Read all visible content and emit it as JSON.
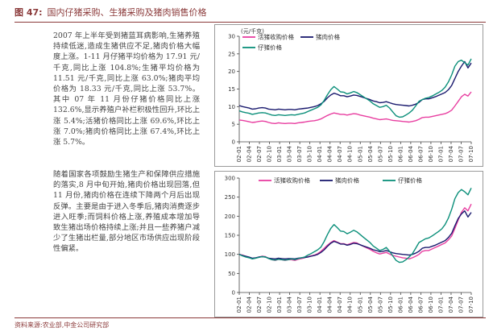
{
  "header": {
    "figure_label": "图 47:",
    "title": "国内仔猪采购、生猪采购及猪肉销售价格"
  },
  "text": {
    "para1": "2007 年上半年受到猪蓝耳病影响,生猪养殖持续低迷,造成生猪供应不足,猪肉价格大幅度上涨。1-11 月仔猪平均价格为 17.91 元/千克,同比上涨 104.8%;生猪平均价格为 11.51 元/千克,同比上涨 63.0%;猪肉平均价格为 18.33 元/千克,同比上涨 53.7%。其中 07 年 11 月份仔猪价格同比上涨 132.6%,显示养殖户补栏积极性回升,环比上涨 5.4%;活猪价格同比上涨 69.6%,环比上涨 7.0%;猪肉价格同比上涨 67.4%,环比上涨 5.7%。",
    "para2": "随着国家各项鼓励生猪生产和保障供应措施的落实,8 月中旬开始,猪肉价格出现回落,但 11 月份,猪肉价格在连续下降两个月后出现反弹。主要是由于进入冬季后,猪肉消费逐步进入旺季;而饲料价格上涨,养殖成本增加导致生猪出场价格持续上涨;并且一些养猪户减少了生猪出栏量,部分地区市场供应出现阶段性偏紧。"
  },
  "source": "资料来源:农业部,中金公司研究部",
  "colors": {
    "live_pig": "#e83ea0",
    "pork": "#1a1a6e",
    "piglet": "#0b8f7a",
    "accent": "#8b3a3a"
  },
  "chart_data": [
    {
      "type": "line",
      "title": "",
      "ylabel": "(元/千克)",
      "ylim": [
        0,
        30
      ],
      "yticks": [
        "0",
        "5",
        "10",
        "15",
        "20",
        "25",
        "30"
      ],
      "grid": false,
      "legend": "top-left",
      "legend_labels": [
        "活猪收购价格",
        "猪肉价格",
        "仔猪价格"
      ],
      "x_ticks": [
        "02-01",
        "02-04",
        "02-07",
        "02-10",
        "03-01",
        "03-04",
        "03-07",
        "03-10",
        "04-01",
        "04-04",
        "04-07",
        "04-10",
        "05-01",
        "05-04",
        "05-07",
        "05-10",
        "06-01",
        "06-04",
        "06-07",
        "06-10",
        "07-01",
        "07-04",
        "07-07",
        "07-10"
      ],
      "series": [
        {
          "name": "活猪收购价格",
          "color_key": "live_pig",
          "values": [
            6.2,
            6.1,
            5.9,
            5.7,
            5.5,
            5.6,
            5.8,
            5.9,
            5.8,
            5.5,
            5.3,
            5.2,
            5.4,
            5.3,
            5.2,
            5.3,
            5.3,
            5.2,
            5.4,
            5.5,
            5.6,
            5.8,
            5.9,
            6.0,
            6.2,
            6.5,
            7.0,
            7.5,
            7.9,
            8.2,
            8.0,
            7.8,
            7.8,
            7.6,
            7.8,
            8.0,
            7.9,
            7.6,
            7.4,
            7.2,
            7.0,
            6.7,
            6.5,
            6.3,
            6.4,
            6.5,
            6.3,
            6.1,
            6.0,
            5.9,
            5.8,
            5.7,
            5.6,
            5.8,
            6.0,
            6.4,
            6.9,
            7.0,
            7.0,
            7.2,
            7.4,
            7.6,
            7.8,
            8.0,
            8.4,
            9.0,
            10.2,
            11.5,
            12.8,
            13.5,
            13.0,
            14.2
          ]
        },
        {
          "name": "猪肉价格",
          "color_key": "pork",
          "values": [
            10.3,
            10.0,
            9.8,
            9.6,
            9.3,
            9.4,
            9.6,
            9.7,
            9.6,
            9.3,
            9.2,
            9.1,
            9.3,
            9.2,
            9.1,
            9.2,
            9.2,
            9.1,
            9.3,
            9.4,
            9.5,
            9.6,
            9.8,
            10.0,
            10.3,
            10.8,
            11.5,
            12.5,
            13.3,
            13.8,
            13.5,
            13.1,
            13.1,
            12.8,
            13.0,
            13.3,
            13.2,
            12.9,
            12.6,
            12.3,
            12.0,
            11.6,
            11.4,
            11.1,
            11.2,
            11.4,
            11.1,
            10.8,
            10.6,
            10.5,
            10.4,
            10.3,
            10.2,
            10.4,
            10.7,
            11.2,
            12.0,
            12.2,
            12.2,
            12.5,
            12.8,
            13.2,
            13.6,
            14.0,
            14.8,
            16.0,
            18.0,
            20.0,
            21.5,
            22.8,
            21.0,
            22.4
          ]
        },
        {
          "name": "仔猪价格",
          "color_key": "piglet",
          "values": [
            8.8,
            8.5,
            8.3,
            8.1,
            7.8,
            8.0,
            8.2,
            8.3,
            8.2,
            7.9,
            7.6,
            7.5,
            7.7,
            7.6,
            7.5,
            7.6,
            7.7,
            7.6,
            7.8,
            8.0,
            8.2,
            8.6,
            9.0,
            9.4,
            9.8,
            10.5,
            11.8,
            13.4,
            14.8,
            15.7,
            15.0,
            14.2,
            14.1,
            13.6,
            13.9,
            14.3,
            14.0,
            13.4,
            12.8,
            12.2,
            11.6,
            10.8,
            10.3,
            9.8,
            10.0,
            10.4,
            9.6,
            8.5,
            7.4,
            7.0,
            7.1,
            7.6,
            8.2,
            9.0,
            10.2,
            11.5,
            12.0,
            12.4,
            12.6,
            13.0,
            13.5,
            14.0,
            14.6,
            15.5,
            17.0,
            19.0,
            21.5,
            22.8,
            23.2,
            22.5,
            21.8,
            23.6
          ]
        }
      ]
    },
    {
      "type": "line",
      "title": "",
      "ylabel": "",
      "ylim": [
        0,
        300
      ],
      "yticks": [
        "0",
        "50",
        "100",
        "150",
        "200",
        "250",
        "300"
      ],
      "grid": false,
      "legend": "top",
      "legend_labels": [
        "活猪收购价格",
        "猪肉价格",
        "仔猪价格"
      ],
      "x_ticks": [
        "02-01",
        "02-04",
        "02-07",
        "02-10",
        "03-01",
        "03-04",
        "03-07",
        "03-10",
        "04-01",
        "04-04",
        "04-07",
        "04-10",
        "05-01",
        "05-04",
        "05-07",
        "05-10",
        "06-01",
        "06-04",
        "06-07",
        "06-10",
        "07-01",
        "07-04",
        "07-07",
        "07-10"
      ],
      "series": [
        {
          "name": "活猪收购价格",
          "color_key": "live_pig",
          "values": [
            100,
            98,
            95,
            92,
            89,
            90,
            93,
            95,
            94,
            89,
            86,
            84,
            87,
            86,
            84,
            86,
            86,
            84,
            87,
            89,
            91,
            94,
            96,
            98,
            102,
            108,
            116,
            124,
            131,
            136,
            132,
            128,
            128,
            125,
            128,
            131,
            130,
            125,
            121,
            117,
            113,
            108,
            104,
            101,
            103,
            105,
            101,
            97,
            95,
            93,
            91,
            90,
            88,
            91,
            95,
            100,
            108,
            110,
            110,
            114,
            118,
            122,
            126,
            130,
            138,
            148,
            168,
            190,
            210,
            222,
            214,
            232
          ]
        },
        {
          "name": "猪肉价格",
          "color_key": "pork",
          "values": [
            100,
            97,
            95,
            93,
            90,
            91,
            93,
            94,
            93,
            90,
            89,
            88,
            90,
            89,
            88,
            89,
            89,
            88,
            90,
            91,
            92,
            93,
            95,
            97,
            100,
            105,
            112,
            121,
            129,
            134,
            131,
            127,
            127,
            124,
            126,
            129,
            128,
            125,
            122,
            119,
            116,
            112,
            110,
            107,
            108,
            110,
            107,
            104,
            102,
            101,
            100,
            99,
            98,
            100,
            103,
            108,
            116,
            118,
            118,
            121,
            124,
            128,
            132,
            136,
            144,
            155,
            175,
            194,
            206,
            214,
            198,
            210
          ]
        },
        {
          "name": "仔猪价格",
          "color_key": "piglet",
          "values": [
            100,
            96,
            93,
            91,
            88,
            90,
            92,
            94,
            93,
            89,
            86,
            85,
            87,
            86,
            85,
            86,
            88,
            86,
            89,
            91,
            93,
            98,
            102,
            107,
            112,
            119,
            134,
            152,
            168,
            178,
            170,
            161,
            160,
            154,
            158,
            163,
            159,
            152,
            145,
            138,
            131,
            122,
            116,
            110,
            113,
            118,
            108,
            96,
            84,
            79,
            80,
            86,
            93,
            102,
            116,
            131,
            136,
            141,
            143,
            148,
            154,
            160,
            167,
            178,
            195,
            218,
            246,
            262,
            270,
            264,
            256,
            274
          ]
        }
      ]
    }
  ]
}
